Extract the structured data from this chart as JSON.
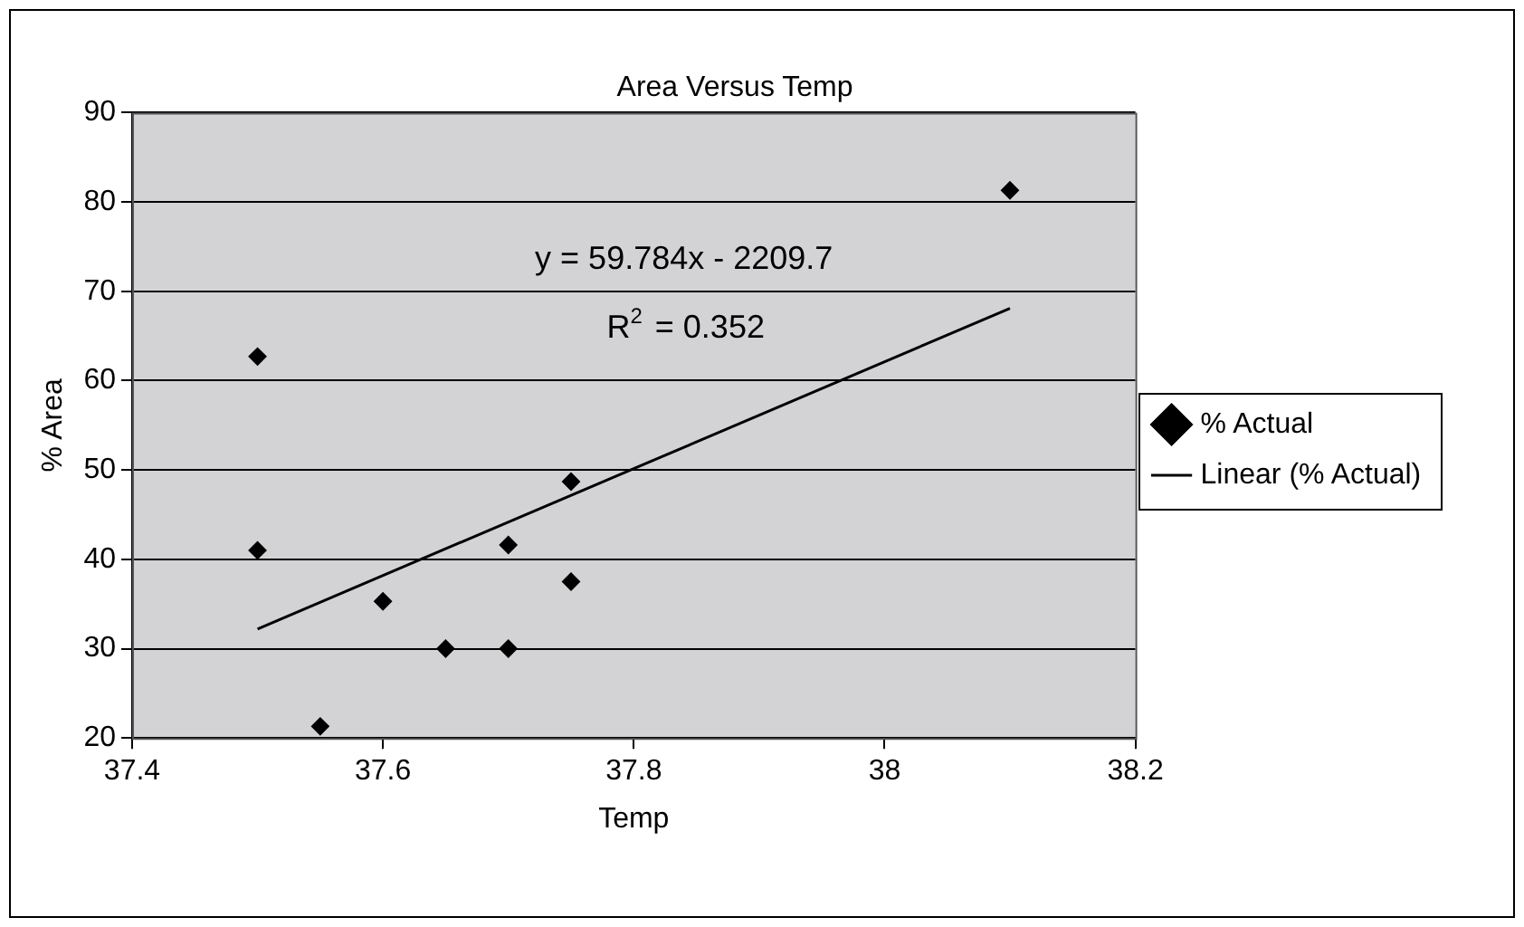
{
  "chart_data": {
    "type": "scatter",
    "title": "Area Versus Temp",
    "xlabel": "Temp",
    "ylabel": "% Area",
    "xlim": [
      37.4,
      38.2
    ],
    "xticks": [
      37.4,
      37.6,
      37.8,
      38,
      38.2
    ],
    "ylim": [
      20,
      90
    ],
    "yticks": [
      20,
      30,
      40,
      50,
      60,
      70,
      80,
      90
    ],
    "grid": "y",
    "legend": "right",
    "marker": "diamond",
    "series": [
      {
        "name": "% Actual",
        "color": "#000000",
        "x": [
          37.5,
          37.5,
          37.55,
          37.6,
          37.65,
          37.7,
          37.7,
          37.75,
          37.75,
          38.1
        ],
        "values": [
          62.7,
          41,
          21.3,
          35.3,
          30,
          30,
          41.6,
          48.7,
          37.5,
          81.3
        ]
      },
      {
        "name": "Linear (% Actual)",
        "type": "line",
        "marker": "none",
        "line_style": "solid",
        "color": "#000000",
        "x": [
          37.5,
          38.1
        ],
        "values": [
          32.2,
          68.1
        ]
      }
    ],
    "annotations": [
      "y = 59.784x - 2209.7",
      "R$^{2}$ = 0.352"
    ]
  }
}
